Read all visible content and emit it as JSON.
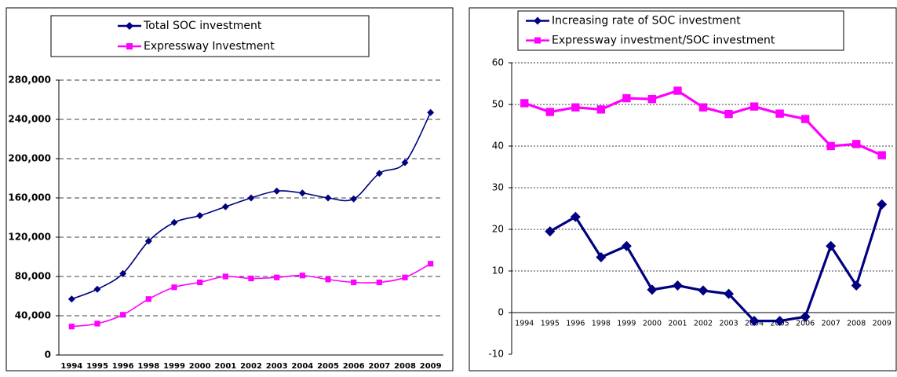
{
  "chart_data": [
    {
      "type": "line",
      "smooth": true,
      "legend": "top",
      "categories": [
        "1994",
        "1995",
        "1996",
        "1998",
        "1999",
        "2000",
        "2001",
        "2002",
        "2003",
        "2004",
        "2005",
        "2006",
        "2007",
        "2008",
        "2009"
      ],
      "series": [
        {
          "name": "Total SOC investment",
          "color": "#000080",
          "marker": "diamond",
          "values": [
            57000,
            67000,
            83000,
            116000,
            135000,
            142000,
            151000,
            160000,
            167000,
            165000,
            160000,
            159000,
            185000,
            196000,
            247000
          ]
        },
        {
          "name": "Expressway Investment",
          "color": "#ff00ff",
          "marker": "square",
          "values": [
            29000,
            32000,
            41000,
            57000,
            69000,
            74000,
            80000,
            78000,
            79000,
            81000,
            77000,
            74000,
            74000,
            79000,
            93000
          ]
        }
      ],
      "ylim": [
        0,
        280000
      ],
      "yticks": [
        0,
        {
          "value": 40000,
          "label": "40,000"
        },
        {
          "value": 80000,
          "label": "80,000"
        },
        {
          "value": 120000,
          "label": "120,000"
        },
        {
          "value": 160000,
          "label": "160,000"
        },
        {
          "value": 200000,
          "label": "200,000"
        },
        {
          "value": 240000,
          "label": "240,000"
        },
        {
          "value": 280000,
          "label": "280,000"
        }
      ],
      "grid": true
    },
    {
      "type": "line",
      "smooth": false,
      "legend": "top",
      "categories": [
        "1994",
        "1995",
        "1996",
        "1998",
        "1999",
        "2000",
        "2001",
        "2002",
        "2003",
        "2004",
        "2005",
        "2006",
        "2007",
        "2008",
        "2009"
      ],
      "series": [
        {
          "name": "Increasing rate of SOC investment",
          "color": "#000080",
          "marker": "diamond",
          "values": [
            null,
            19.5,
            23,
            13.3,
            16,
            5.5,
            6.5,
            5.3,
            4.5,
            -2,
            -2,
            -1,
            16,
            6.5,
            26
          ]
        },
        {
          "name": "Expressway investment/SOC investment",
          "color": "#ff00ff",
          "marker": "square",
          "values": [
            50.3,
            48.2,
            49.3,
            48.8,
            51.5,
            51.3,
            53.3,
            49.3,
            47.7,
            49.5,
            47.8,
            46.5,
            40,
            40.5,
            37.8
          ]
        }
      ],
      "ylim": [
        -10,
        60
      ],
      "yticks": [
        -10,
        0,
        10,
        20,
        30,
        40,
        50,
        60
      ],
      "grid": true
    }
  ]
}
